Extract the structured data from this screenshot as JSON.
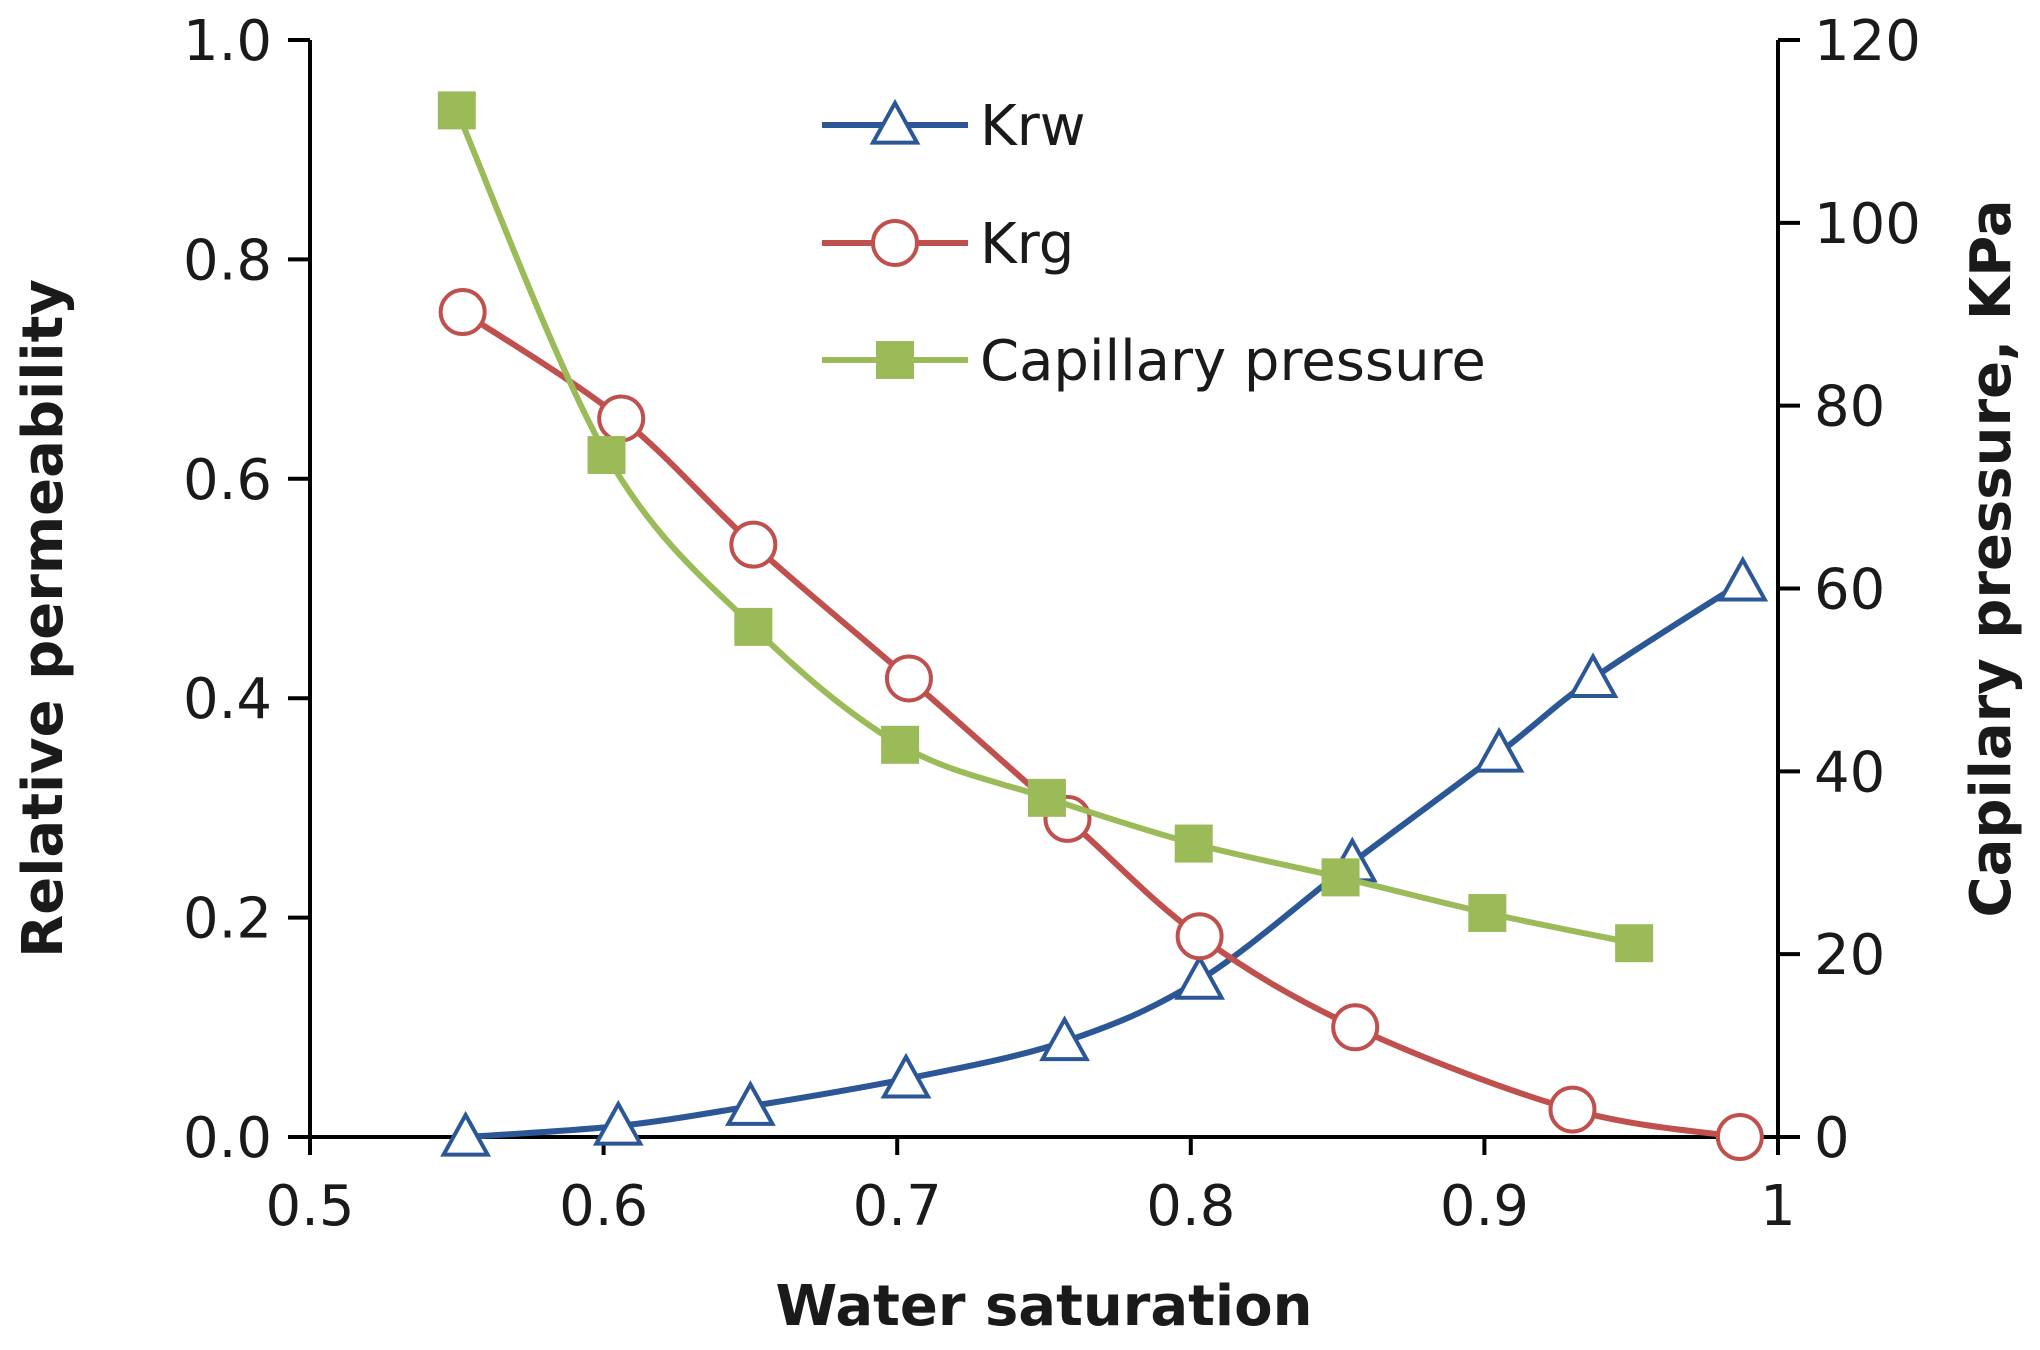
{
  "chart_data": {
    "type": "line",
    "title": "",
    "xlabel": "Water saturation",
    "ylabel": "Relative permeability",
    "y2label": "Capilary pressure, KPa",
    "xlim": [
      0.5,
      1.0
    ],
    "ylim": [
      0.0,
      1.0
    ],
    "y2lim": [
      0,
      120
    ],
    "x_ticks": [
      0.5,
      0.6,
      0.7,
      0.8,
      0.9,
      1.0
    ],
    "x_tick_labels": [
      "0.5",
      "0.6",
      "0.7",
      "0.8",
      "0.9",
      "1"
    ],
    "y_ticks": [
      0.0,
      0.2,
      0.4,
      0.6,
      0.8,
      1.0
    ],
    "y_tick_labels": [
      "0.0",
      "0.2",
      "0.4",
      "0.6",
      "0.8",
      "1.0"
    ],
    "y2_ticks": [
      0,
      20,
      40,
      60,
      80,
      100,
      120
    ],
    "y2_tick_labels": [
      "0",
      "20",
      "40",
      "60",
      "80",
      "100",
      "120"
    ],
    "grid": false,
    "legend_position": "top-center",
    "series": [
      {
        "name": "Krw",
        "axis": "left",
        "color": "#2b5797",
        "marker": "triangle-open",
        "x": [
          0.553,
          0.605,
          0.65,
          0.703,
          0.757,
          0.803,
          0.855,
          0.905,
          0.937,
          0.988
        ],
        "y": [
          0.0,
          0.01,
          0.028,
          0.053,
          0.087,
          0.143,
          0.25,
          0.35,
          0.418,
          0.506
        ]
      },
      {
        "name": "Krg",
        "axis": "left",
        "color": "#c0504d",
        "marker": "circle-open",
        "x": [
          0.552,
          0.606,
          0.651,
          0.704,
          0.758,
          0.803,
          0.856,
          0.93,
          0.987
        ],
        "y": [
          0.752,
          0.655,
          0.54,
          0.418,
          0.29,
          0.183,
          0.1,
          0.025,
          0.0
        ]
      },
      {
        "name": "Capillary pressure",
        "axis": "right",
        "color": "#9bbb59",
        "marker": "square-filled",
        "x": [
          0.55,
          0.601,
          0.651,
          0.701,
          0.751,
          0.801,
          0.851,
          0.901,
          0.951
        ],
        "y": [
          112.3,
          74.6,
          55.8,
          42.9,
          37.1,
          32.1,
          28.4,
          24.5,
          21.2
        ]
      }
    ]
  }
}
